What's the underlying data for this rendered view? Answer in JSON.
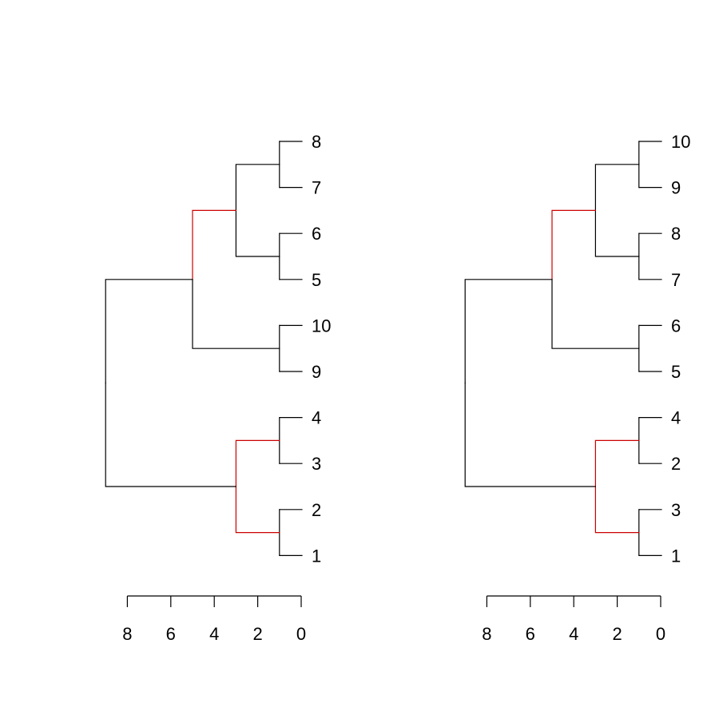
{
  "colors": {
    "default": "#000000",
    "highlight": "#cc0000"
  },
  "chart_data": [
    {
      "type": "dendrogram",
      "orientation": "horizontal",
      "axis": {
        "range": [
          8,
          0
        ],
        "ticks": [
          8,
          6,
          4,
          2,
          0
        ],
        "tick_labels": [
          "8",
          "6",
          "4",
          "2",
          "0"
        ]
      },
      "leaves": [
        "8",
        "7",
        "6",
        "5",
        "10",
        "9",
        "4",
        "3",
        "2",
        "1"
      ],
      "merges": [
        {
          "id": "a",
          "children": [
            "L0",
            "L1"
          ],
          "height": 1,
          "highlight": false
        },
        {
          "id": "b",
          "children": [
            "L2",
            "L3"
          ],
          "height": 1,
          "highlight": false
        },
        {
          "id": "c",
          "children": [
            "a",
            "b"
          ],
          "height": 3,
          "highlight": false
        },
        {
          "id": "d",
          "children": [
            "L4",
            "L5"
          ],
          "height": 1,
          "highlight": false
        },
        {
          "id": "e",
          "children": [
            "c",
            "d"
          ],
          "height": 5,
          "highlight": false
        },
        {
          "id": "f",
          "children": [
            "L6",
            "L7"
          ],
          "height": 1,
          "highlight": false
        },
        {
          "id": "g",
          "children": [
            "L8",
            "L9"
          ],
          "height": 1,
          "highlight": false
        },
        {
          "id": "h",
          "children": [
            "f",
            "g"
          ],
          "height": 3,
          "highlight": false
        },
        {
          "id": "root",
          "children": [
            "e",
            "h"
          ],
          "height": 9,
          "highlight": false
        }
      ],
      "highlighted_edges": [
        [
          "e",
          "c"
        ],
        [
          "h",
          "f"
        ],
        [
          "h",
          "g"
        ]
      ]
    },
    {
      "type": "dendrogram",
      "orientation": "horizontal",
      "axis": {
        "range": [
          8,
          0
        ],
        "ticks": [
          8,
          6,
          4,
          2,
          0
        ],
        "tick_labels": [
          "8",
          "6",
          "4",
          "2",
          "0"
        ]
      },
      "leaves": [
        "10",
        "9",
        "8",
        "7",
        "6",
        "5",
        "4",
        "2",
        "3",
        "1"
      ],
      "merges": [
        {
          "id": "a",
          "children": [
            "L0",
            "L1"
          ],
          "height": 1,
          "highlight": false
        },
        {
          "id": "b",
          "children": [
            "L2",
            "L3"
          ],
          "height": 1,
          "highlight": false
        },
        {
          "id": "c",
          "children": [
            "a",
            "b"
          ],
          "height": 3,
          "highlight": false
        },
        {
          "id": "d",
          "children": [
            "L4",
            "L5"
          ],
          "height": 1,
          "highlight": false
        },
        {
          "id": "e",
          "children": [
            "c",
            "d"
          ],
          "height": 5,
          "highlight": false
        },
        {
          "id": "f",
          "children": [
            "L6",
            "L7"
          ],
          "height": 1,
          "highlight": false
        },
        {
          "id": "g",
          "children": [
            "L8",
            "L9"
          ],
          "height": 1,
          "highlight": false
        },
        {
          "id": "h",
          "children": [
            "f",
            "g"
          ],
          "height": 3,
          "highlight": false
        },
        {
          "id": "root",
          "children": [
            "e",
            "h"
          ],
          "height": 9,
          "highlight": false
        }
      ],
      "highlighted_edges": [
        [
          "e",
          "c"
        ],
        [
          "h",
          "f"
        ],
        [
          "h",
          "g"
        ]
      ]
    }
  ]
}
